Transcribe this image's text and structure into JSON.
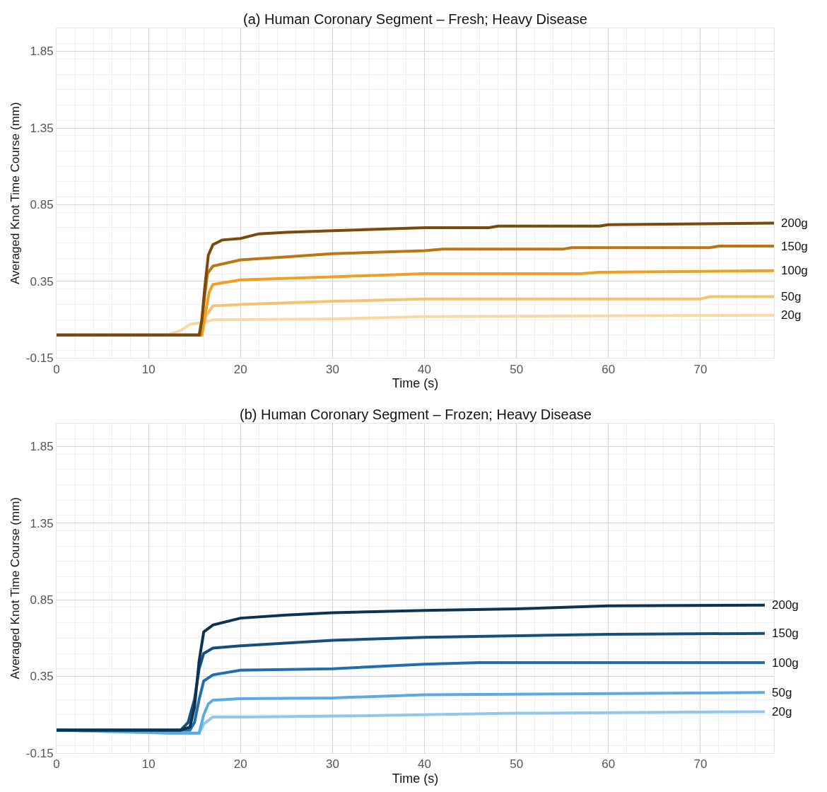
{
  "chart_data": [
    {
      "type": "line",
      "title": "(a) Human Coronary Segment – Fresh; Heavy Disease",
      "xlabel": "Time (s)",
      "ylabel": "Averaged Knot Time Course (mm)",
      "xlim": [
        0,
        78
      ],
      "xticks": [
        0,
        10,
        20,
        30,
        40,
        50,
        60,
        70
      ],
      "ylim": [
        -0.15,
        2.0
      ],
      "yticks": [
        -0.15,
        0.35,
        0.85,
        1.35,
        1.85
      ],
      "grid": true,
      "marker": "none",
      "line_style": "solid",
      "series": [
        {
          "name": "20g",
          "color": "#f8d9a3",
          "x": [
            0,
            12,
            13.5,
            14.5,
            15.5,
            16.5,
            17,
            30,
            40,
            78
          ],
          "values": [
            0,
            0,
            0.03,
            0.07,
            0.08,
            0.09,
            0.1,
            0.105,
            0.12,
            0.13
          ]
        },
        {
          "name": "50g",
          "color": "#f5c271",
          "x": [
            0,
            15.8,
            16.2,
            17,
            20,
            30,
            40,
            70,
            71,
            78
          ],
          "values": [
            0,
            0,
            0.12,
            0.19,
            0.2,
            0.22,
            0.235,
            0.235,
            0.25,
            0.25
          ]
        },
        {
          "name": "100g",
          "color": "#f0a020",
          "x": [
            0,
            15.8,
            16.2,
            16.6,
            17,
            20,
            30,
            35,
            40,
            57,
            59,
            78
          ],
          "values": [
            0,
            0,
            0.15,
            0.28,
            0.33,
            0.36,
            0.38,
            0.39,
            0.4,
            0.4,
            0.41,
            0.42
          ]
        },
        {
          "name": "150g",
          "color": "#bd7512",
          "x": [
            0,
            15.6,
            16,
            16.4,
            17,
            20,
            25,
            30,
            40,
            42,
            55,
            56,
            71,
            72,
            78
          ],
          "values": [
            0,
            0,
            0.2,
            0.4,
            0.45,
            0.49,
            0.51,
            0.53,
            0.55,
            0.56,
            0.56,
            0.57,
            0.57,
            0.58,
            0.58
          ]
        },
        {
          "name": "200g",
          "color": "#7a4a0a",
          "x": [
            0,
            15.5,
            15.8,
            16.1,
            16.5,
            17,
            18,
            20,
            22,
            25,
            30,
            40,
            47,
            48,
            59,
            60,
            78
          ],
          "values": [
            0,
            0,
            0.1,
            0.3,
            0.52,
            0.59,
            0.62,
            0.63,
            0.66,
            0.67,
            0.68,
            0.7,
            0.7,
            0.71,
            0.71,
            0.72,
            0.73
          ]
        }
      ]
    },
    {
      "type": "line",
      "title": "(b) Human Coronary Segment – Frozen; Heavy Disease",
      "xlabel": "Time (s)",
      "ylabel": "Averaged Knot Time Course (mm)",
      "xlim": [
        0,
        78
      ],
      "xticks": [
        0,
        10,
        20,
        30,
        40,
        50,
        60,
        70
      ],
      "ylim": [
        -0.15,
        2.0
      ],
      "yticks": [
        -0.15,
        0.35,
        0.85,
        1.35,
        1.85
      ],
      "grid": true,
      "marker": "none",
      "line_style": "solid",
      "series": [
        {
          "name": "20g",
          "color": "#92c6ec",
          "x": [
            0,
            12.5,
            15.5,
            16,
            17,
            20,
            35,
            50,
            77
          ],
          "values": [
            0,
            -0.02,
            -0.02,
            0.04,
            0.085,
            0.085,
            0.095,
            0.11,
            0.12
          ]
        },
        {
          "name": "50g",
          "color": "#5aaae3",
          "x": [
            0,
            12.5,
            15.5,
            16,
            16.5,
            17,
            20,
            30,
            40,
            77
          ],
          "values": [
            0,
            -0.02,
            -0.02,
            0.1,
            0.17,
            0.195,
            0.205,
            0.21,
            0.23,
            0.245
          ]
        },
        {
          "name": "100g",
          "color": "#1f6fae",
          "x": [
            0,
            14.5,
            15,
            15.5,
            16,
            17,
            20,
            30,
            40,
            46,
            77
          ],
          "values": [
            0,
            0,
            0.05,
            0.2,
            0.32,
            0.36,
            0.39,
            0.4,
            0.43,
            0.44,
            0.44
          ]
        },
        {
          "name": "150g",
          "color": "#154f7e",
          "x": [
            0,
            13.5,
            14.3,
            15,
            15.5,
            16,
            17,
            20,
            30,
            40,
            60,
            77
          ],
          "values": [
            0,
            0,
            0.05,
            0.2,
            0.4,
            0.5,
            0.535,
            0.55,
            0.585,
            0.605,
            0.625,
            0.63
          ]
        },
        {
          "name": "200g",
          "color": "#0d3352",
          "x": [
            0,
            13.5,
            14.5,
            15,
            15.5,
            16,
            17,
            20,
            25,
            30,
            40,
            50,
            60,
            77
          ],
          "values": [
            0,
            0,
            0.02,
            0.15,
            0.45,
            0.64,
            0.685,
            0.73,
            0.75,
            0.765,
            0.78,
            0.79,
            0.81,
            0.815
          ]
        }
      ]
    }
  ]
}
